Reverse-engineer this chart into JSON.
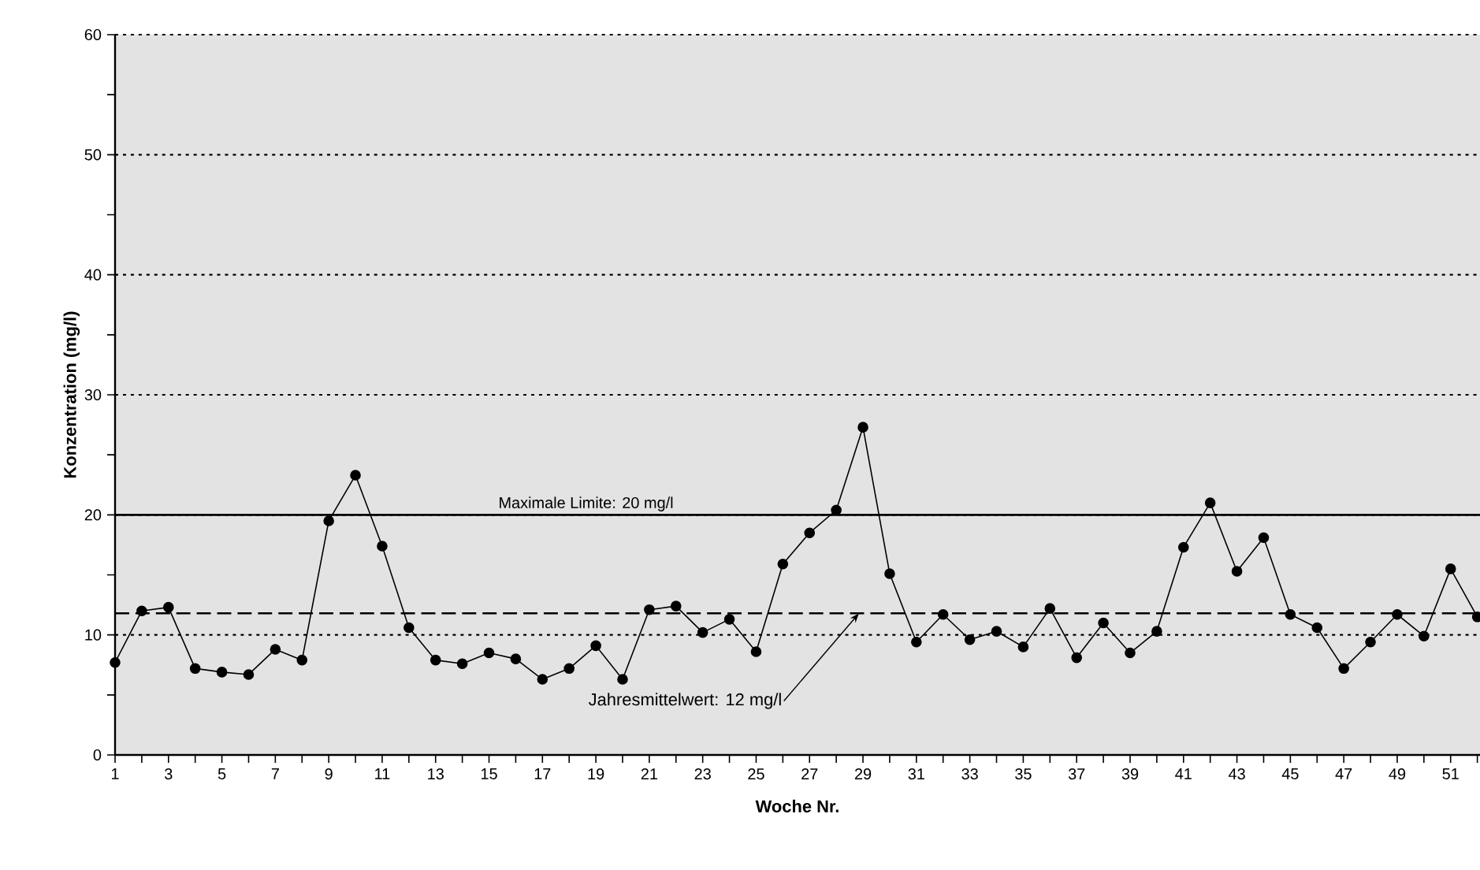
{
  "chart_data": {
    "type": "line",
    "xlabel": "Woche Nr.",
    "ylabel": "Konzentration (mg/l)",
    "x": [
      1,
      2,
      3,
      4,
      5,
      6,
      7,
      8,
      9,
      10,
      11,
      12,
      13,
      14,
      15,
      16,
      17,
      18,
      19,
      20,
      21,
      22,
      23,
      24,
      25,
      26,
      27,
      28,
      29,
      30,
      31,
      32,
      33,
      34,
      35,
      36,
      37,
      38,
      39,
      40,
      41,
      42,
      43,
      44,
      45,
      46,
      47,
      48,
      49,
      50,
      51,
      52
    ],
    "series": [
      {
        "color": "#000000",
        "values": [
          7.7,
          12.0,
          12.3,
          7.2,
          6.9,
          6.7,
          8.8,
          7.9,
          19.5,
          23.3,
          17.4,
          10.6,
          7.9,
          7.6,
          8.5,
          8.0,
          6.3,
          7.2,
          9.1,
          6.3,
          12.1,
          12.4,
          10.2,
          11.3,
          8.6,
          15.9,
          18.5,
          20.4,
          27.3,
          15.1,
          9.4,
          11.7,
          9.6,
          10.3,
          9.0,
          12.2,
          8.1,
          11.0,
          8.5,
          10.3,
          17.3,
          21.0,
          15.3,
          18.1,
          11.7,
          10.6,
          7.2,
          9.4,
          11.7,
          9.9,
          15.5,
          11.5
        ]
      }
    ],
    "xlim": [
      1,
      52.1
    ],
    "ylim": [
      0,
      60
    ],
    "xticks": [
      1,
      {
        "value": 2,
        "label": null
      },
      3,
      {
        "value": 4,
        "label": null
      },
      5,
      {
        "value": 6,
        "label": null
      },
      7,
      {
        "value": 8,
        "label": null
      },
      9,
      {
        "value": 10,
        "label": null
      },
      11,
      {
        "value": 12,
        "label": null
      },
      13,
      {
        "value": 14,
        "label": null
      },
      15,
      {
        "value": 16,
        "label": null
      },
      17,
      {
        "value": 18,
        "label": null
      },
      19,
      {
        "value": 20,
        "label": null
      },
      21,
      {
        "value": 22,
        "label": null
      },
      23,
      {
        "value": 24,
        "label": null
      },
      25,
      {
        "value": 26,
        "label": null
      },
      27,
      {
        "value": 28,
        "label": null
      },
      29,
      {
        "value": 30,
        "label": null
      },
      31,
      {
        "value": 32,
        "label": null
      },
      33,
      {
        "value": 34,
        "label": null
      },
      35,
      {
        "value": 36,
        "label": null
      },
      37,
      {
        "value": 38,
        "label": null
      },
      39,
      {
        "value": 40,
        "label": null
      },
      41,
      {
        "value": 42,
        "label": null
      },
      43,
      {
        "value": 44,
        "label": null
      },
      45,
      {
        "value": 46,
        "label": null
      },
      47,
      {
        "value": 48,
        "label": null
      },
      49,
      {
        "value": 50,
        "label": null
      },
      51,
      {
        "value": 52,
        "label": null
      }
    ],
    "yticks": [
      0,
      {
        "value": 5,
        "label": null
      },
      10,
      {
        "value": 15,
        "label": null
      },
      20,
      {
        "value": 25,
        "label": null
      },
      30,
      {
        "value": 35,
        "label": null
      },
      40,
      {
        "value": 45,
        "label": null
      },
      50,
      {
        "value": 55,
        "label": null
      },
      60
    ],
    "ref_lines": [
      {
        "axis": "y",
        "value": 20,
        "label": "Maximale Limite: 20 mg/l",
        "color": "#000000",
        "line_style": "solid"
      },
      {
        "axis": "y",
        "value": 11.8,
        "label": "Jahresmittelwert: 12 mg/l",
        "color": "#000000",
        "line_style": "dashed"
      }
    ],
    "grid": "y",
    "marker": "circle",
    "line_style": "solid"
  }
}
